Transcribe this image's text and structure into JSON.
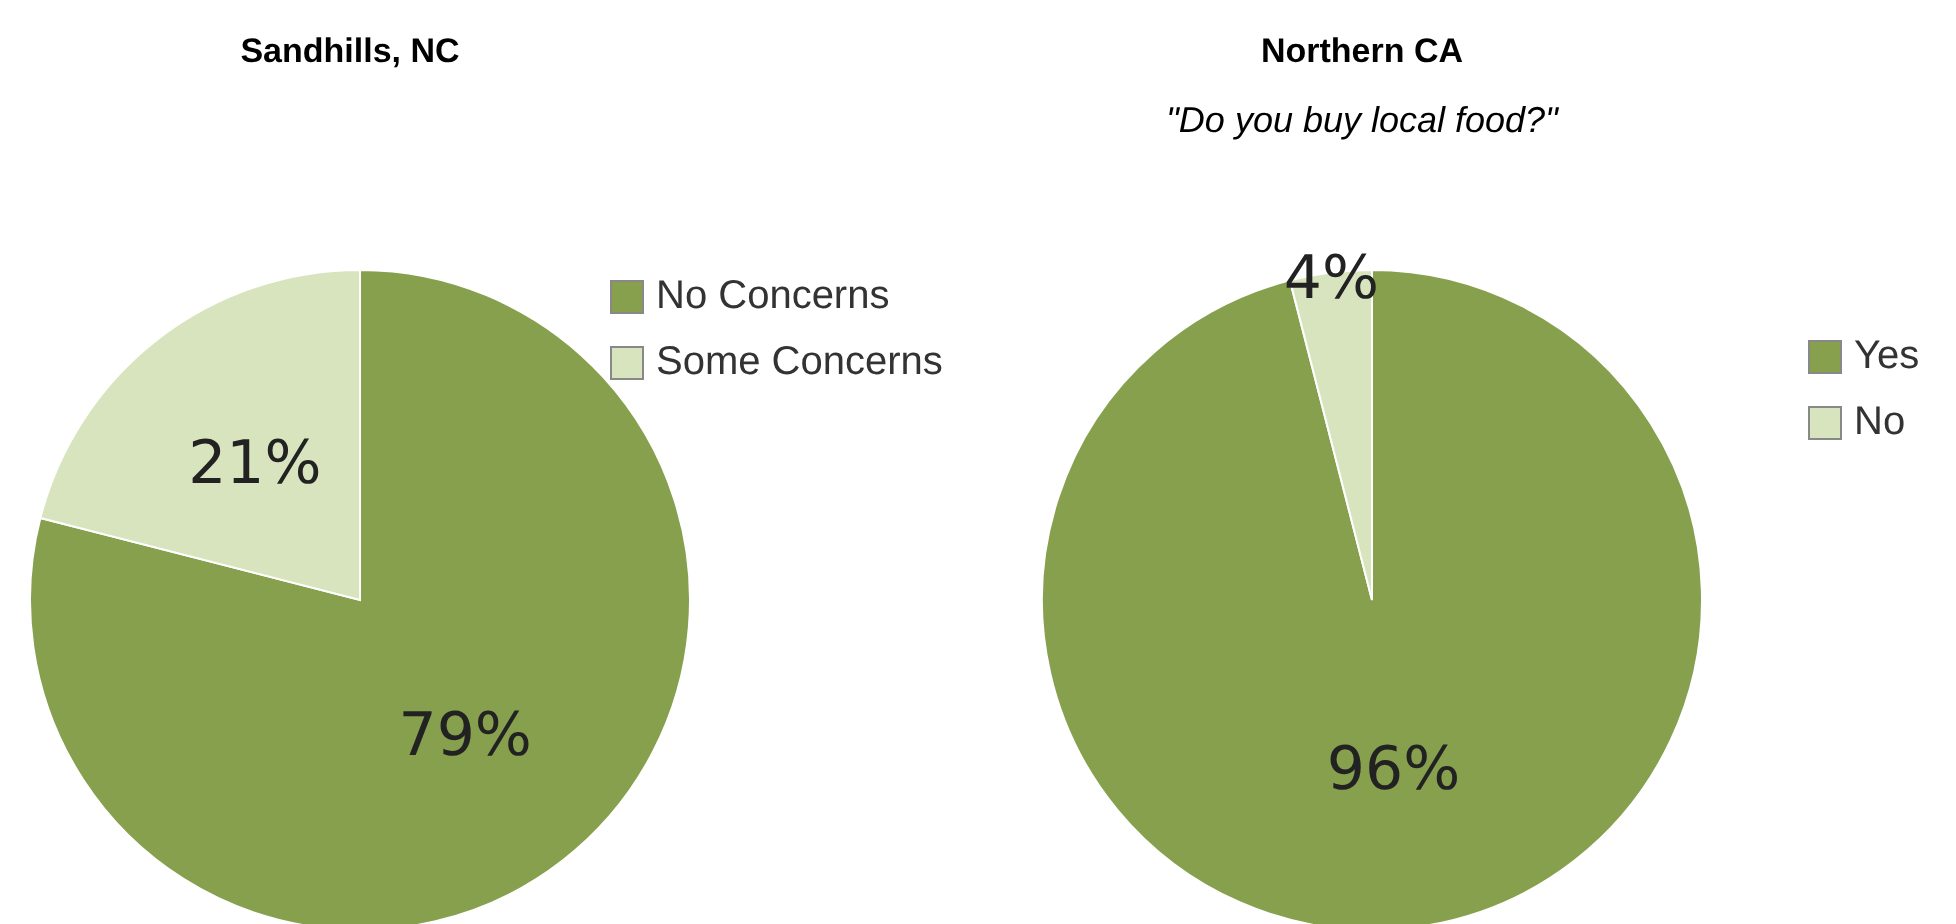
{
  "chart_data": [
    {
      "type": "pie",
      "title": "Sandhills, NC",
      "categories": [
        "No Concerns",
        "Some Concerns"
      ],
      "values": [
        79,
        21
      ],
      "value_labels": [
        "79%",
        "21%"
      ],
      "colors": [
        "#86a04e",
        "#d7e4bd"
      ],
      "legend": "right"
    },
    {
      "type": "pie",
      "title": "Northern CA",
      "subtitle": "\"Do you buy local food?\"",
      "categories": [
        "Yes",
        "No"
      ],
      "values": [
        96,
        4
      ],
      "value_labels": [
        "96%",
        "4%"
      ],
      "colors": [
        "#86a04e",
        "#d7e4bd"
      ],
      "legend": "right"
    }
  ]
}
